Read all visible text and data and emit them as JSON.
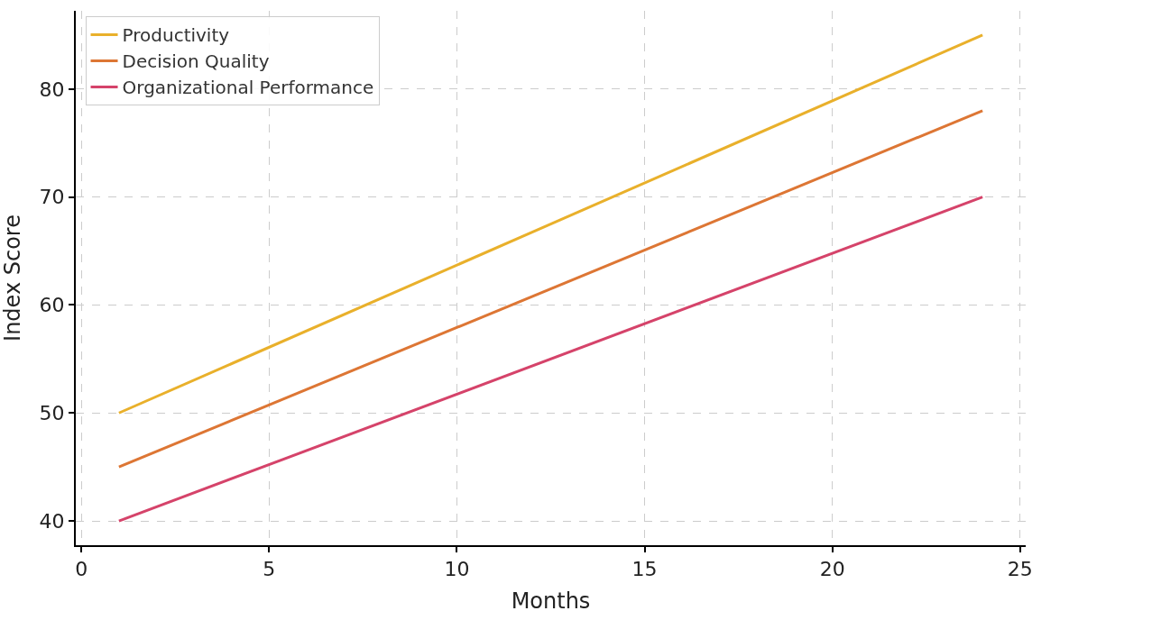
{
  "chart_data": {
    "type": "line",
    "xlabel": "Months",
    "ylabel": "Index Score",
    "x": [
      1,
      24
    ],
    "series": [
      {
        "name": "Productivity",
        "color": "#e9b02b",
        "values": [
          50,
          85
        ]
      },
      {
        "name": "Decision Quality",
        "color": "#dd7634",
        "values": [
          45,
          78
        ]
      },
      {
        "name": "Organizational Performance",
        "color": "#d5436a",
        "values": [
          40,
          70
        ]
      }
    ],
    "xlim": [
      -0.15,
      25.15
    ],
    "xticks": [
      0,
      5,
      10,
      15,
      20,
      25
    ],
    "ylim": [
      37.75,
      87.25
    ],
    "yticks": [
      40,
      50,
      60,
      70,
      80
    ],
    "grid": true,
    "legend": "top left",
    "marker": "none",
    "line_style": "solid"
  }
}
